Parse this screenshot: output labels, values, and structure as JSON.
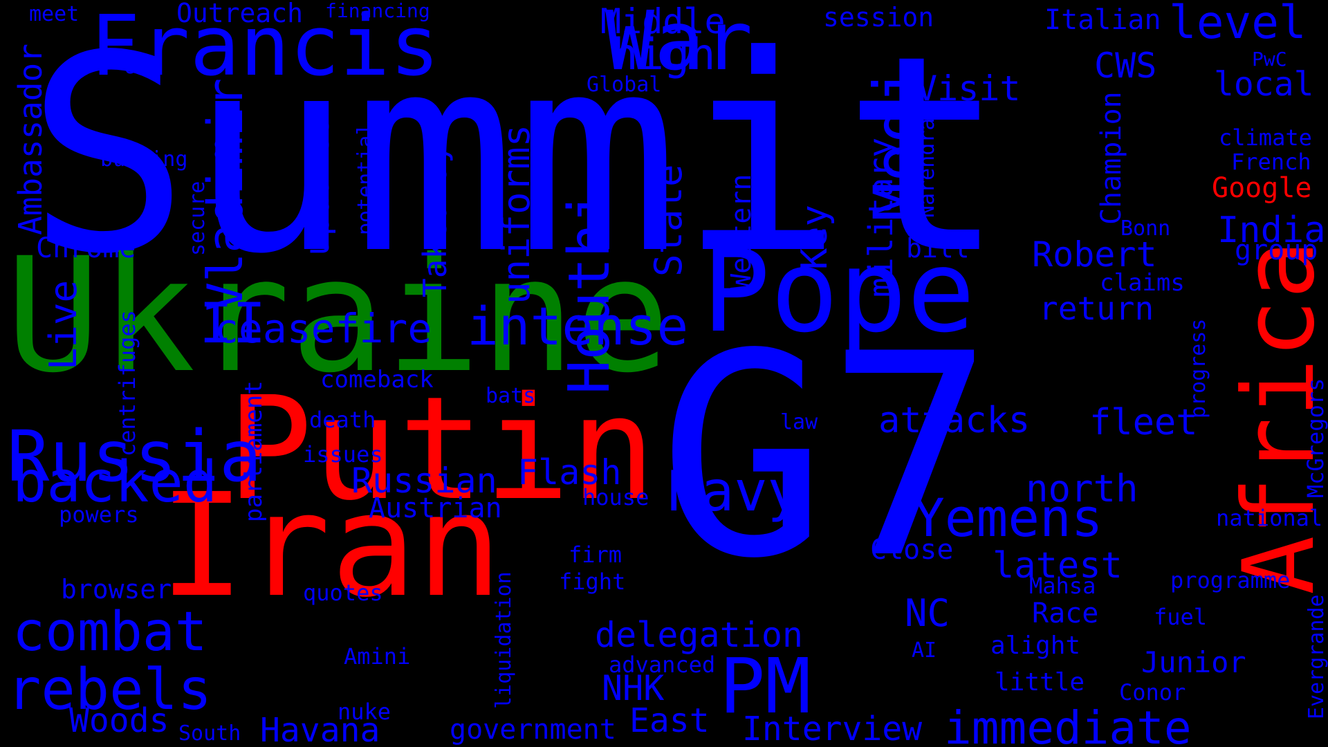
{
  "background": "#000000",
  "colors": {
    "blue": "#0000FF",
    "green": "#008000",
    "red": "#FF0000"
  },
  "words": [
    {
      "id": "summit",
      "text": "Summit",
      "color": "blue"
    },
    {
      "id": "g7",
      "text": "G7",
      "color": "blue"
    },
    {
      "id": "ukraine",
      "text": "Ukraine",
      "color": "green"
    },
    {
      "id": "putin",
      "text": "Putin",
      "color": "red"
    },
    {
      "id": "iran",
      "text": "Iran",
      "color": "red"
    },
    {
      "id": "africa",
      "text": "Africa",
      "color": "red"
    },
    {
      "id": "pope",
      "text": "Pope",
      "color": "blue"
    },
    {
      "id": "francis",
      "text": "Francis",
      "color": "blue"
    },
    {
      "id": "war",
      "text": "War",
      "color": "blue"
    },
    {
      "id": "russia",
      "text": "Russia",
      "color": "blue"
    },
    {
      "id": "modi",
      "text": "Modi",
      "color": "blue"
    },
    {
      "id": "houthi",
      "text": "Houthi",
      "color": "blue"
    },
    {
      "id": "intense",
      "text": "intense",
      "color": "blue"
    },
    {
      "id": "ceasefire",
      "text": "ceasefire",
      "color": "blue"
    },
    {
      "id": "backed",
      "text": "backed",
      "color": "blue"
    },
    {
      "id": "combat",
      "text": "combat",
      "color": "blue"
    },
    {
      "id": "rebels",
      "text": "rebels",
      "color": "blue"
    },
    {
      "id": "navy",
      "text": "Navy",
      "color": "blue"
    },
    {
      "id": "pm",
      "text": "PM",
      "color": "blue"
    },
    {
      "id": "yemens",
      "text": "Yemens",
      "color": "blue"
    },
    {
      "id": "immediate",
      "text": "immediate",
      "color": "blue"
    },
    {
      "id": "vladimir",
      "text": "Vladimir",
      "color": "blue"
    },
    {
      "id": "ii",
      "text": "II",
      "color": "blue"
    },
    {
      "id": "high",
      "text": "high",
      "color": "blue"
    },
    {
      "id": "level",
      "text": "level",
      "color": "blue"
    },
    {
      "id": "middle",
      "text": "Middle",
      "color": "blue"
    },
    {
      "id": "visit",
      "text": "Visit",
      "color": "blue"
    },
    {
      "id": "local",
      "text": "local",
      "color": "blue"
    },
    {
      "id": "cws",
      "text": "CWS",
      "color": "blue"
    },
    {
      "id": "italian",
      "text": "Italian",
      "color": "blue"
    },
    {
      "id": "session",
      "text": "session",
      "color": "blue"
    },
    {
      "id": "outreach",
      "text": "Outreach",
      "color": "blue"
    },
    {
      "id": "financing",
      "text": "financing",
      "color": "blue"
    },
    {
      "id": "meet",
      "text": "meet",
      "color": "blue"
    },
    {
      "id": "ufc",
      "text": "UFC",
      "color": "blue"
    },
    {
      "id": "global",
      "text": "Global",
      "color": "blue"
    },
    {
      "id": "pwc",
      "text": "PwC",
      "color": "blue"
    },
    {
      "id": "ambassador",
      "text": "Ambassador",
      "color": "blue"
    },
    {
      "id": "burning",
      "text": "burning",
      "color": "blue"
    },
    {
      "id": "chrome",
      "text": "Chrome",
      "color": "blue"
    },
    {
      "id": "secure",
      "text": "secure",
      "color": "blue"
    },
    {
      "id": "potential",
      "text": "potential",
      "color": "blue"
    },
    {
      "id": "updates",
      "text": "updates",
      "color": "blue"
    },
    {
      "id": "takeaways",
      "text": "Takeaways",
      "color": "blue"
    },
    {
      "id": "uniforms",
      "text": "uniforms",
      "color": "blue"
    },
    {
      "id": "state",
      "text": "State",
      "color": "blue"
    },
    {
      "id": "western",
      "text": "Western",
      "color": "blue"
    },
    {
      "id": "key",
      "text": "Key",
      "color": "blue"
    },
    {
      "id": "military",
      "text": "military",
      "color": "blue"
    },
    {
      "id": "narendra",
      "text": "Narendra",
      "color": "blue"
    },
    {
      "id": "bill",
      "text": "bill",
      "color": "blue"
    },
    {
      "id": "robert",
      "text": "Robert",
      "color": "blue"
    },
    {
      "id": "champion",
      "text": "Champion",
      "color": "blue"
    },
    {
      "id": "india",
      "text": "India",
      "color": "blue"
    },
    {
      "id": "bonn",
      "text": "Bonn",
      "color": "blue"
    },
    {
      "id": "group",
      "text": "group",
      "color": "blue"
    },
    {
      "id": "claims",
      "text": "claims",
      "color": "blue"
    },
    {
      "id": "climate",
      "text": "climate",
      "color": "blue"
    },
    {
      "id": "french",
      "text": "French",
      "color": "blue"
    },
    {
      "id": "google",
      "text": "Google",
      "color": "red"
    },
    {
      "id": "return",
      "text": "return",
      "color": "blue"
    },
    {
      "id": "live",
      "text": "Live",
      "color": "blue"
    },
    {
      "id": "centrifuges",
      "text": "centrifuges",
      "color": "blue"
    },
    {
      "id": "parliament",
      "text": "parliament",
      "color": "blue"
    },
    {
      "id": "comeback",
      "text": "comeback",
      "color": "blue"
    },
    {
      "id": "death",
      "text": "death",
      "color": "blue"
    },
    {
      "id": "bats",
      "text": "bats",
      "color": "blue"
    },
    {
      "id": "law",
      "text": "law",
      "color": "blue"
    },
    {
      "id": "attacks",
      "text": "attacks",
      "color": "blue"
    },
    {
      "id": "fleet",
      "text": "fleet",
      "color": "blue"
    },
    {
      "id": "progress",
      "text": "progress",
      "color": "blue"
    },
    {
      "id": "mcgregors",
      "text": "McGregors",
      "color": "blue"
    },
    {
      "id": "issues",
      "text": "issues",
      "color": "blue"
    },
    {
      "id": "flash",
      "text": "Flash",
      "color": "blue"
    },
    {
      "id": "russian",
      "text": "Russian",
      "color": "blue"
    },
    {
      "id": "austrian",
      "text": "Austrian",
      "color": "blue"
    },
    {
      "id": "house",
      "text": "house",
      "color": "blue"
    },
    {
      "id": "north",
      "text": "north",
      "color": "blue"
    },
    {
      "id": "national",
      "text": "national",
      "color": "blue"
    },
    {
      "id": "powers",
      "text": "powers",
      "color": "blue"
    },
    {
      "id": "close",
      "text": "Close",
      "color": "blue"
    },
    {
      "id": "latest",
      "text": "latest",
      "color": "blue"
    },
    {
      "id": "firm",
      "text": "firm",
      "color": "blue"
    },
    {
      "id": "fight",
      "text": "fight",
      "color": "blue"
    },
    {
      "id": "mahsa",
      "text": "Mahsa",
      "color": "blue"
    },
    {
      "id": "programme",
      "text": "programme",
      "color": "blue"
    },
    {
      "id": "browser",
      "text": "browser",
      "color": "blue"
    },
    {
      "id": "quotes",
      "text": "quotes",
      "color": "blue"
    },
    {
      "id": "liquidation",
      "text": "liquidation",
      "color": "blue"
    },
    {
      "id": "nc",
      "text": "NC",
      "color": "blue"
    },
    {
      "id": "race",
      "text": "Race",
      "color": "blue"
    },
    {
      "id": "fuel",
      "text": "fuel",
      "color": "blue"
    },
    {
      "id": "delegation",
      "text": "delegation",
      "color": "blue"
    },
    {
      "id": "ai",
      "text": "AI",
      "color": "blue"
    },
    {
      "id": "alight",
      "text": "alight",
      "color": "blue"
    },
    {
      "id": "amini",
      "text": "Amini",
      "color": "blue"
    },
    {
      "id": "advanced",
      "text": "advanced",
      "color": "blue"
    },
    {
      "id": "junior",
      "text": "Junior",
      "color": "blue"
    },
    {
      "id": "evergrande",
      "text": "Evergrande",
      "color": "blue"
    },
    {
      "id": "nhk",
      "text": "NHK",
      "color": "blue"
    },
    {
      "id": "little",
      "text": "little",
      "color": "blue"
    },
    {
      "id": "conor",
      "text": "Conor",
      "color": "blue"
    },
    {
      "id": "nuke",
      "text": "nuke",
      "color": "blue"
    },
    {
      "id": "woods",
      "text": "Woods",
      "color": "blue"
    },
    {
      "id": "east",
      "text": "East",
      "color": "blue"
    },
    {
      "id": "south",
      "text": "South",
      "color": "blue"
    },
    {
      "id": "havana",
      "text": "Havana",
      "color": "blue"
    },
    {
      "id": "government",
      "text": "government",
      "color": "blue"
    },
    {
      "id": "interview",
      "text": "Interview",
      "color": "blue"
    }
  ]
}
